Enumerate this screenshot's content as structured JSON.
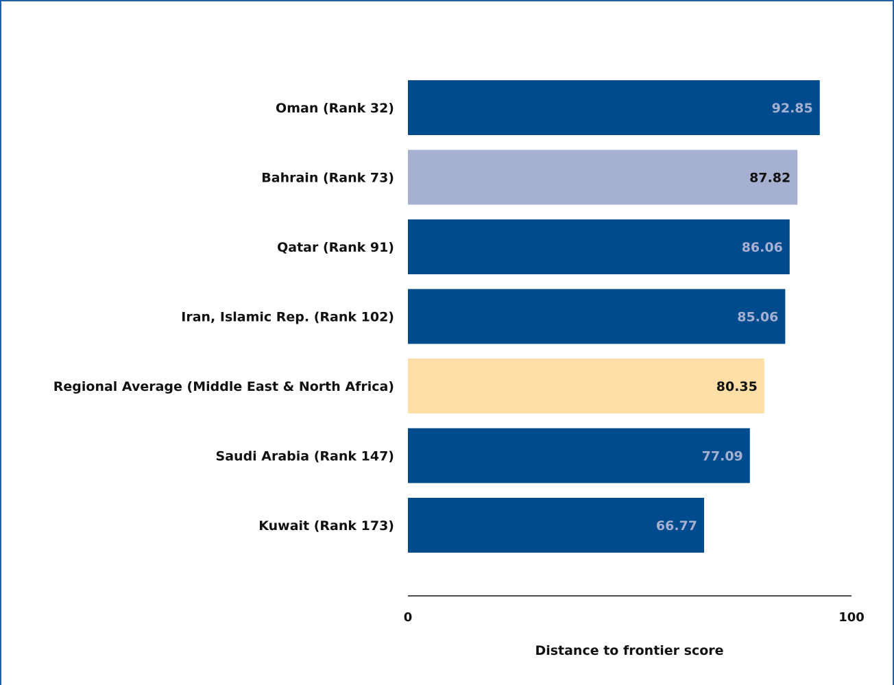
{
  "chart_data": {
    "type": "bar",
    "orientation": "horizontal",
    "categories": [
      "Oman (Rank 32)",
      "Bahrain (Rank 73)",
      "Qatar (Rank 91)",
      "Iran, Islamic Rep. (Rank 102)",
      "Regional Average (Middle East & North Africa)",
      "Saudi Arabia (Rank 147)",
      "Kuwait (Rank 173)"
    ],
    "values": [
      92.85,
      87.82,
      86.06,
      85.06,
      80.35,
      77.09,
      66.77
    ],
    "value_labels": [
      "92.85",
      "87.82",
      "86.06",
      "85.06",
      "80.35",
      "77.09",
      "66.77"
    ],
    "bar_colors": [
      "#004b8d",
      "#a6b1d2",
      "#004b8d",
      "#004b8d",
      "#ffdfa6",
      "#004b8d",
      "#004b8d"
    ],
    "label_colors": [
      "#a6b1d2",
      "#111111",
      "#a6b1d2",
      "#a6b1d2",
      "#111111",
      "#a6b1d2",
      "#a6b1d2"
    ],
    "xlim": [
      0,
      100
    ],
    "xticks": [
      "0",
      "100"
    ],
    "xlabel": "Distance to frontier score",
    "grid": false,
    "legend": "none"
  },
  "colors": {
    "frame": "#1f5fa8",
    "axis": "#111111"
  }
}
